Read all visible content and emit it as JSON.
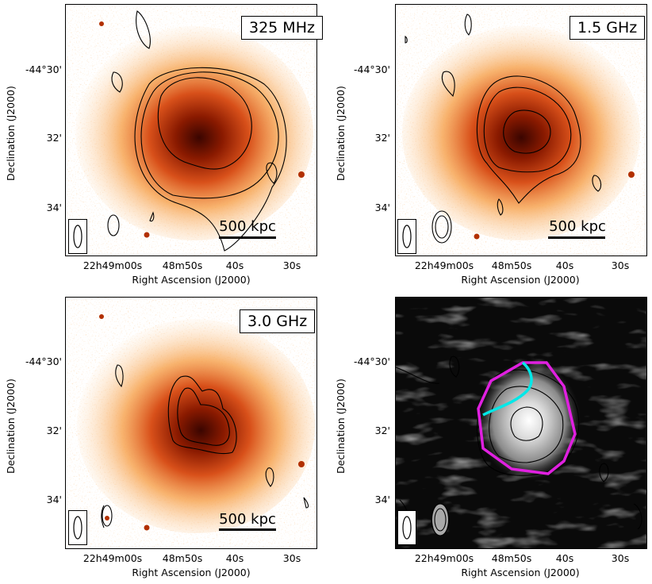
{
  "xlabel": "Right Ascension (J2000)",
  "ylabel": "Declination (J2000)",
  "xticks": [
    "22h49m00s",
    "48m50s",
    "40s",
    "30s"
  ],
  "yticks": [
    "-44°30'",
    "32'",
    "34'"
  ],
  "panels": [
    {
      "freq_label": "325 MHz",
      "scale_label": "500 kpc"
    },
    {
      "freq_label": "1.5 GHz",
      "scale_label": "500 kpc"
    },
    {
      "freq_label": "3.0 GHz",
      "scale_label": "500 kpc"
    },
    {
      "freq_label": "",
      "scale_label": ""
    }
  ],
  "colors": {
    "xray_core": "#5a0a00",
    "xray_outer": "#f6a04a",
    "halo_outline": "#e020e0",
    "relic_outline": "#00e8e8",
    "contour": "#000000"
  }
}
